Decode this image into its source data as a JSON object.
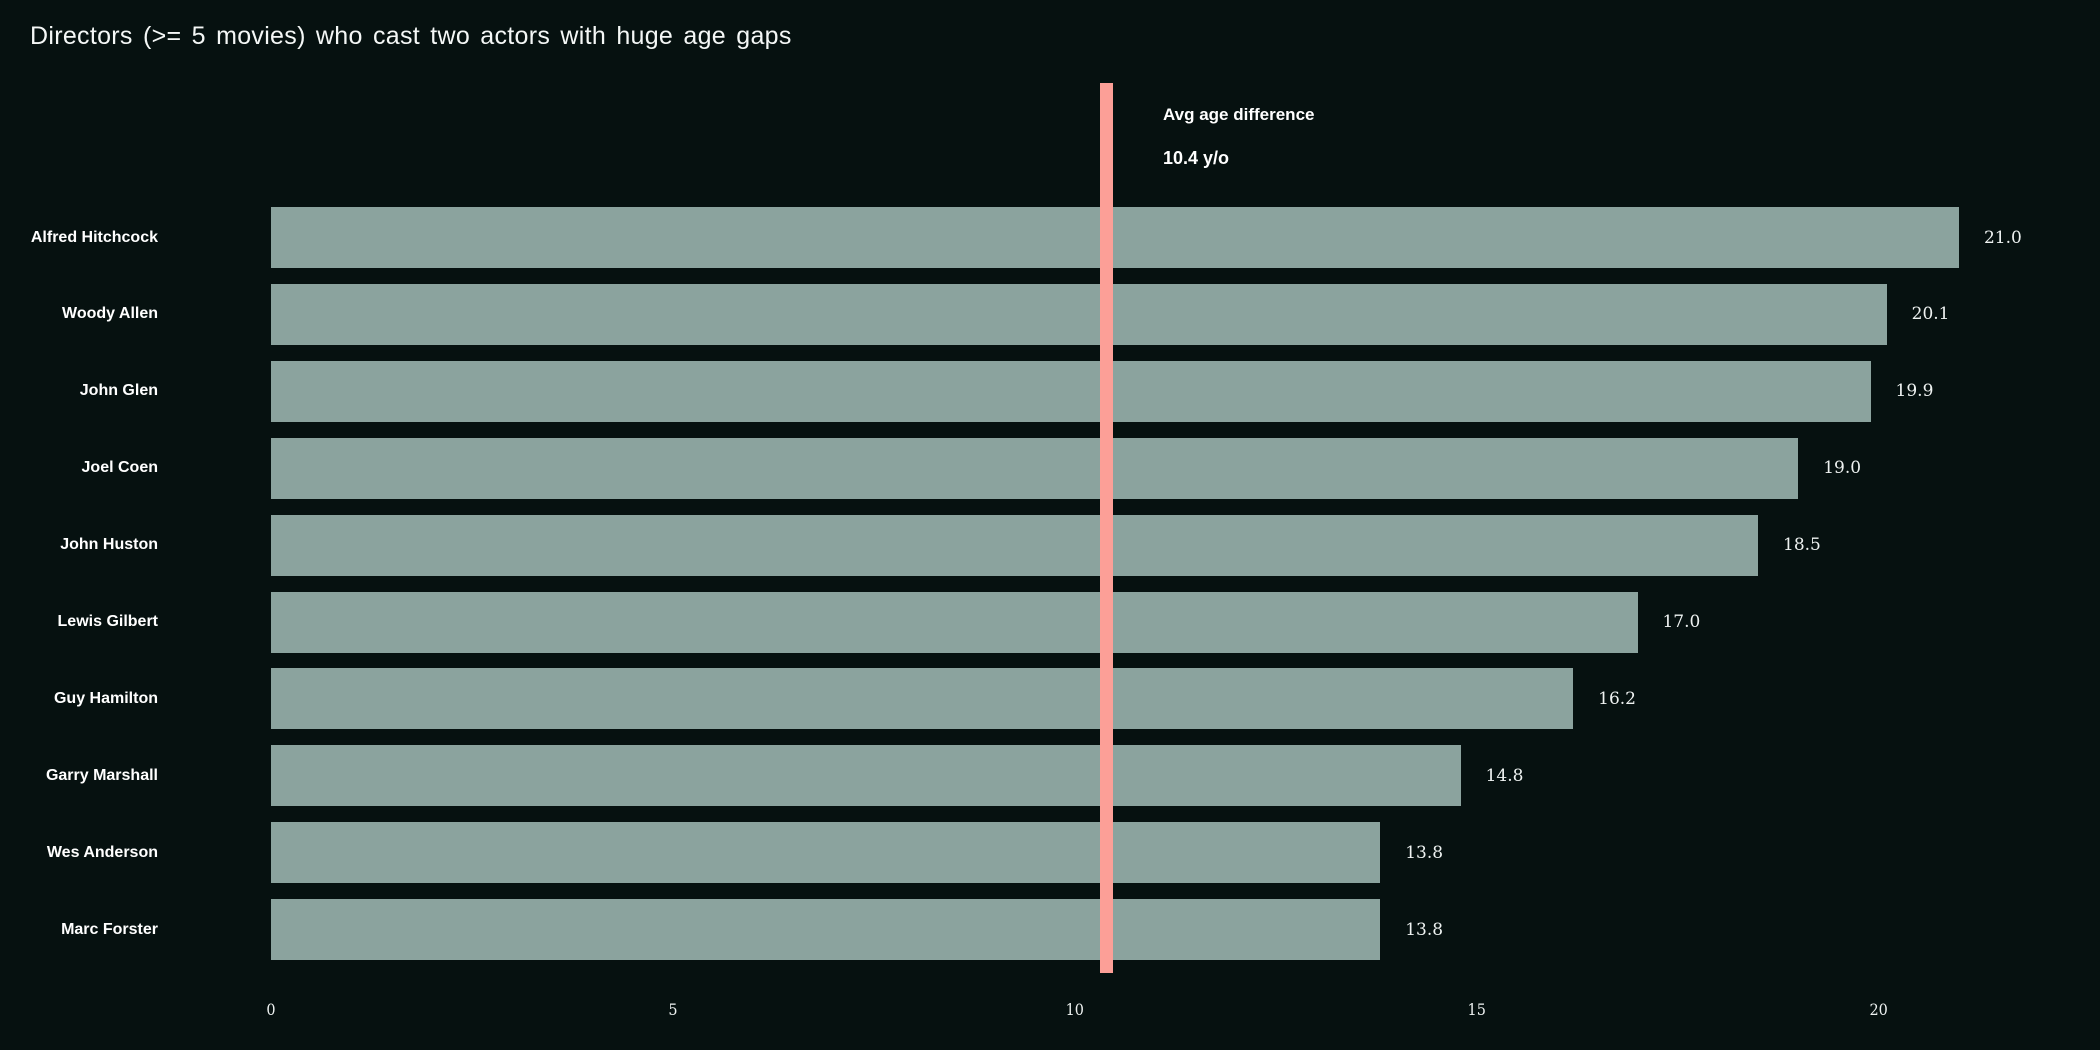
{
  "title": "Directors (>= 5 movies) who cast two actors with huge age gaps",
  "annotation": {
    "line1": "Avg age difference",
    "line2": "10.4 y/o",
    "value": 10.4
  },
  "colors": {
    "background": "#061110",
    "bar": "#8ba39e",
    "avg_line": "#fc9f97",
    "title_text": "#f4f7f6",
    "label_text": "#ffffff",
    "value_text": "#eef2f1"
  },
  "chart_data": {
    "type": "bar",
    "orientation": "horizontal",
    "title": "Directors (>= 5 movies) who cast two actors with huge age gaps",
    "categories": [
      "Alfred Hitchcock",
      "Woody Allen",
      "John Glen",
      "Joel Coen",
      "John Huston",
      "Lewis Gilbert",
      "Guy Hamilton",
      "Garry Marshall",
      "Wes Anderson",
      "Marc Forster"
    ],
    "values": [
      21.0,
      20.1,
      19.9,
      19.0,
      18.5,
      17.0,
      16.2,
      14.8,
      13.8,
      13.8
    ],
    "value_labels": [
      "21.0",
      "20.1",
      "19.9",
      "19.0",
      "18.5",
      "17.0",
      "16.2",
      "14.8",
      "13.8",
      "13.8"
    ],
    "xlabel": "",
    "ylabel": "",
    "xticks": [
      0,
      5,
      10,
      15,
      20
    ],
    "xlim": [
      0,
      22.75
    ],
    "grid": false,
    "legend": false,
    "annotation_line_value": 10.4
  }
}
